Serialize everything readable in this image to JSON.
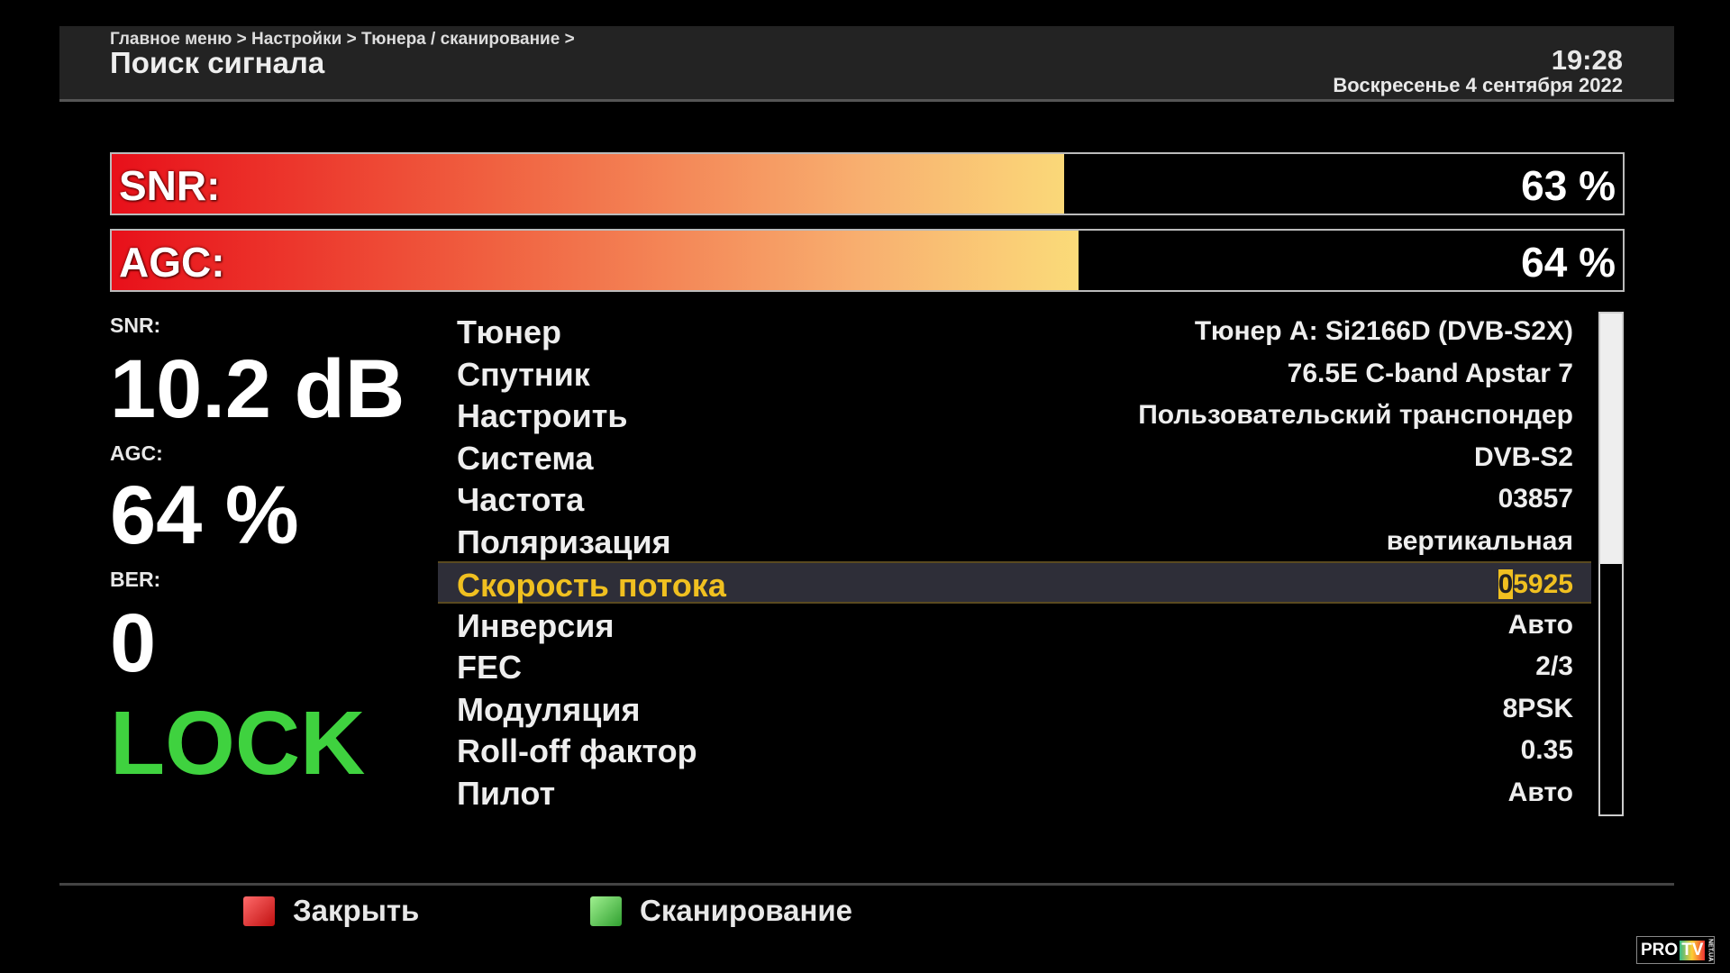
{
  "header": {
    "breadcrumb": "Главное меню > Настройки > Тюнера / сканирование >",
    "title": "Поиск сигнала",
    "time": "19:28",
    "date": "Воскресенье  4 сентября 2022"
  },
  "bars": [
    {
      "label": "SNR:",
      "value_text": "63 %",
      "percent": 63
    },
    {
      "label": "AGC:",
      "value_text": "64 %",
      "percent": 64
    }
  ],
  "stats": {
    "snr_label": "SNR:",
    "snr_value": "10.2 dB",
    "agc_label": "AGC:",
    "agc_value": "64 %",
    "ber_label": "BER:",
    "ber_value": "0",
    "lock": "LOCK",
    "lock_color": "#3fd23f"
  },
  "params": [
    {
      "key": "Тюнер",
      "value": "Тюнер A: Si2166D (DVB-S2X)"
    },
    {
      "key": "Спутник",
      "value": "76.5E C-band Apstar 7"
    },
    {
      "key": "Настроить",
      "value": "Пользовательский транспондер"
    },
    {
      "key": "Система",
      "value": "DVB-S2"
    },
    {
      "key": "Частота",
      "value": "03857"
    },
    {
      "key": "Поляризация",
      "value": "вертикальная"
    },
    {
      "key": "Скорость потока",
      "value_cursor": "0",
      "value_rest": "5925",
      "selected": true
    },
    {
      "key": "Инверсия",
      "value": "Авто"
    },
    {
      "key": "FEC",
      "value": "2/3"
    },
    {
      "key": "Модуляция",
      "value": "8PSK"
    },
    {
      "key": "Roll-off фактор",
      "value": "0.35"
    },
    {
      "key": "Пилот",
      "value": "Авто"
    }
  ],
  "scroll_fraction": 0.5,
  "footer": {
    "close": "Закрыть",
    "scan": "Сканирование"
  },
  "logo": {
    "text1": "PRO",
    "text2": "TV",
    "text3": "NET.UA"
  }
}
